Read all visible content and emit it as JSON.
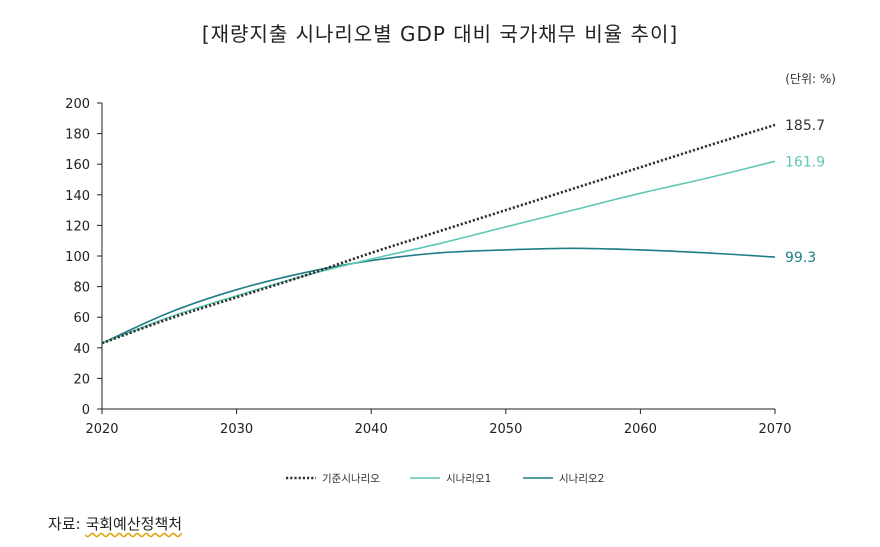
{
  "title": "[재량지출 시나리오별 GDP 대비 국가채무 비율 추이]",
  "unit_label": "(단위: %)",
  "source": {
    "prefix": "자료: ",
    "org": "국회예산정책처"
  },
  "colors": {
    "baseline": "#333333",
    "scenario1": "#5cc7b4",
    "scenario2": "#1f7d86",
    "axis": "#222222"
  },
  "chart_data": {
    "type": "line",
    "xlim": [
      2020,
      2070
    ],
    "ylim": [
      0,
      200
    ],
    "x_ticks": [
      2020,
      2030,
      2040,
      2050,
      2060,
      2070
    ],
    "y_ticks": [
      0,
      20,
      40,
      60,
      80,
      100,
      120,
      140,
      160,
      180,
      200
    ],
    "grid": false,
    "legend_position": "bottom",
    "series": [
      {
        "name": "기준시나리오",
        "style": "dotted",
        "end_label": "185.7",
        "x": [
          2020,
          2025,
          2030,
          2035,
          2040,
          2045,
          2050,
          2055,
          2060,
          2065,
          2070
        ],
        "y": [
          43,
          59,
          73,
          87,
          102,
          116,
          130,
          144,
          158,
          172,
          185.7
        ]
      },
      {
        "name": "시나리오1",
        "style": "solid",
        "end_label": "161.9",
        "x": [
          2020,
          2025,
          2030,
          2035,
          2040,
          2045,
          2050,
          2055,
          2060,
          2065,
          2070
        ],
        "y": [
          43,
          60,
          74,
          87,
          98,
          108,
          119,
          130,
          141,
          151,
          161.9
        ]
      },
      {
        "name": "시나리오2",
        "style": "solid",
        "end_label": "99.3",
        "x": [
          2020,
          2025,
          2030,
          2035,
          2040,
          2045,
          2050,
          2055,
          2060,
          2065,
          2070
        ],
        "y": [
          43,
          63,
          78,
          89,
          97,
          102,
          104,
          105,
          104,
          102,
          99.3
        ]
      }
    ]
  }
}
